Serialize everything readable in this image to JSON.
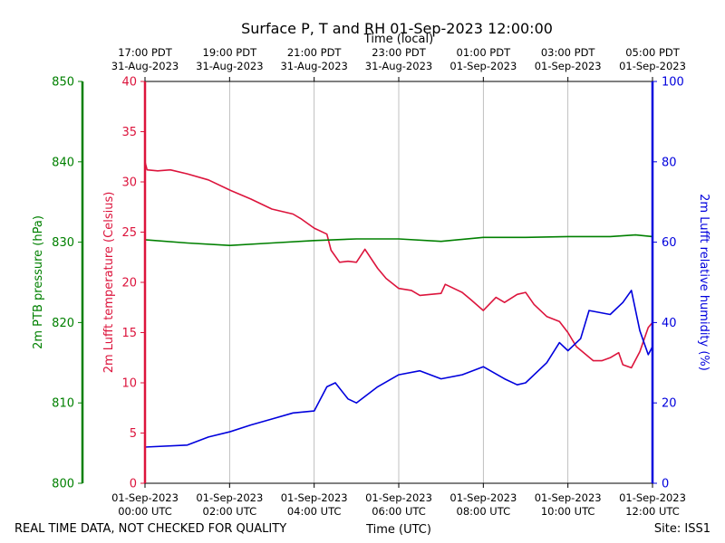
{
  "chart_data": {
    "type": "line",
    "title": "Surface P, T and RH 01-Sep-2023 12:00:00",
    "top_axis_label": "Time (local)",
    "bottom_axis_label": "Time (UTC)",
    "footer_left": "REAL TIME DATA, NOT CHECKED FOR QUALITY",
    "footer_right": "Site: ISS1",
    "x_hours_utc_range": [
      0,
      12
    ],
    "bottom_ticks": [
      {
        "hour": 0,
        "l1": "01-Sep-2023",
        "l2": "00:00 UTC"
      },
      {
        "hour": 2,
        "l1": "01-Sep-2023",
        "l2": "02:00 UTC"
      },
      {
        "hour": 4,
        "l1": "01-Sep-2023",
        "l2": "04:00 UTC"
      },
      {
        "hour": 6,
        "l1": "01-Sep-2023",
        "l2": "06:00 UTC"
      },
      {
        "hour": 8,
        "l1": "01-Sep-2023",
        "l2": "08:00 UTC"
      },
      {
        "hour": 10,
        "l1": "01-Sep-2023",
        "l2": "10:00 UTC"
      },
      {
        "hour": 12,
        "l1": "01-Sep-2023",
        "l2": "12:00 UTC"
      }
    ],
    "top_ticks": [
      {
        "hour": 0,
        "l1": "17:00 PDT",
        "l2": "31-Aug-2023"
      },
      {
        "hour": 2,
        "l1": "19:00 PDT",
        "l2": "31-Aug-2023"
      },
      {
        "hour": 4,
        "l1": "21:00 PDT",
        "l2": "31-Aug-2023"
      },
      {
        "hour": 6,
        "l1": "23:00 PDT",
        "l2": "31-Aug-2023"
      },
      {
        "hour": 8,
        "l1": "01:00 PDT",
        "l2": "01-Sep-2023"
      },
      {
        "hour": 10,
        "l1": "03:00 PDT",
        "l2": "01-Sep-2023"
      },
      {
        "hour": 12,
        "l1": "05:00 PDT",
        "l2": "01-Sep-2023"
      }
    ],
    "axes": {
      "pressure": {
        "label": "2m PTB pressure (hPa)",
        "range": [
          800,
          850
        ],
        "ticks": [
          "800",
          "810",
          "820",
          "830",
          "840",
          "850"
        ],
        "color": "#008000"
      },
      "temperature": {
        "label": "2m Lufft temperature (Celsius)",
        "range": [
          0,
          40
        ],
        "ticks": [
          "0",
          "5",
          "10",
          "15",
          "20",
          "25",
          "30",
          "35",
          "40"
        ],
        "color": "#dc143c"
      },
      "humidity": {
        "label": "2m Lufft relative humidity (%)",
        "range": [
          0,
          100
        ],
        "ticks": [
          "0",
          "20",
          "40",
          "60",
          "80",
          "100"
        ],
        "color": "#0000dd"
      }
    },
    "series": [
      {
        "name": "temperature",
        "axis": "temperature",
        "color": "#dc143c",
        "points": [
          [
            0,
            32.0
          ],
          [
            0.05,
            31.2
          ],
          [
            0.3,
            31.1
          ],
          [
            0.6,
            31.2
          ],
          [
            1.0,
            30.8
          ],
          [
            1.5,
            30.2
          ],
          [
            2.0,
            29.2
          ],
          [
            2.5,
            28.3
          ],
          [
            3.0,
            27.3
          ],
          [
            3.5,
            26.8
          ],
          [
            3.7,
            26.3
          ],
          [
            4.0,
            25.4
          ],
          [
            4.3,
            24.8
          ],
          [
            4.4,
            23.2
          ],
          [
            4.6,
            22.0
          ],
          [
            4.8,
            22.1
          ],
          [
            5.0,
            22.0
          ],
          [
            5.2,
            23.3
          ],
          [
            5.5,
            21.4
          ],
          [
            5.7,
            20.4
          ],
          [
            6.0,
            19.4
          ],
          [
            6.3,
            19.2
          ],
          [
            6.5,
            18.7
          ],
          [
            7.0,
            18.9
          ],
          [
            7.1,
            19.8
          ],
          [
            7.5,
            19.0
          ],
          [
            7.7,
            18.3
          ],
          [
            8.0,
            17.2
          ],
          [
            8.3,
            18.5
          ],
          [
            8.5,
            18.0
          ],
          [
            8.8,
            18.8
          ],
          [
            9.0,
            19.0
          ],
          [
            9.2,
            17.8
          ],
          [
            9.5,
            16.6
          ],
          [
            9.8,
            16.1
          ],
          [
            10.0,
            15.0
          ],
          [
            10.2,
            13.6
          ],
          [
            10.6,
            12.2
          ],
          [
            10.8,
            12.2
          ],
          [
            11.0,
            12.5
          ],
          [
            11.2,
            13.0
          ],
          [
            11.3,
            11.8
          ],
          [
            11.5,
            11.5
          ],
          [
            11.7,
            13.1
          ],
          [
            11.9,
            15.5
          ],
          [
            12.0,
            16.0
          ]
        ]
      },
      {
        "name": "pressure",
        "axis": "pressure",
        "color": "#008000",
        "points": [
          [
            0,
            830.3
          ],
          [
            1,
            829.9
          ],
          [
            2,
            829.6
          ],
          [
            3,
            829.9
          ],
          [
            4,
            830.2
          ],
          [
            5,
            830.4
          ],
          [
            6,
            830.4
          ],
          [
            7,
            830.1
          ],
          [
            8,
            830.6
          ],
          [
            9,
            830.6
          ],
          [
            10,
            830.7
          ],
          [
            11,
            830.7
          ],
          [
            11.6,
            830.9
          ],
          [
            12,
            830.7
          ]
        ]
      },
      {
        "name": "humidity",
        "axis": "humidity",
        "color": "#0000dd",
        "points": [
          [
            0,
            9.0
          ],
          [
            1,
            9.5
          ],
          [
            1.5,
            11.5
          ],
          [
            2,
            12.8
          ],
          [
            2.5,
            14.5
          ],
          [
            3,
            16.0
          ],
          [
            3.5,
            17.5
          ],
          [
            4,
            18.0
          ],
          [
            4.3,
            24.0
          ],
          [
            4.5,
            25.0
          ],
          [
            4.8,
            21.0
          ],
          [
            5.0,
            20.0
          ],
          [
            5.5,
            24.0
          ],
          [
            6.0,
            27.0
          ],
          [
            6.5,
            28.0
          ],
          [
            7.0,
            26.0
          ],
          [
            7.5,
            27.0
          ],
          [
            8.0,
            29.0
          ],
          [
            8.5,
            26.0
          ],
          [
            8.8,
            24.5
          ],
          [
            9.0,
            25.0
          ],
          [
            9.5,
            30.0
          ],
          [
            9.8,
            35.0
          ],
          [
            10.0,
            33.0
          ],
          [
            10.3,
            36.0
          ],
          [
            10.5,
            43.0
          ],
          [
            11.0,
            42.0
          ],
          [
            11.3,
            45.0
          ],
          [
            11.5,
            48.0
          ],
          [
            11.7,
            38.0
          ],
          [
            11.9,
            32.0
          ],
          [
            12.0,
            34.0
          ]
        ]
      }
    ]
  }
}
